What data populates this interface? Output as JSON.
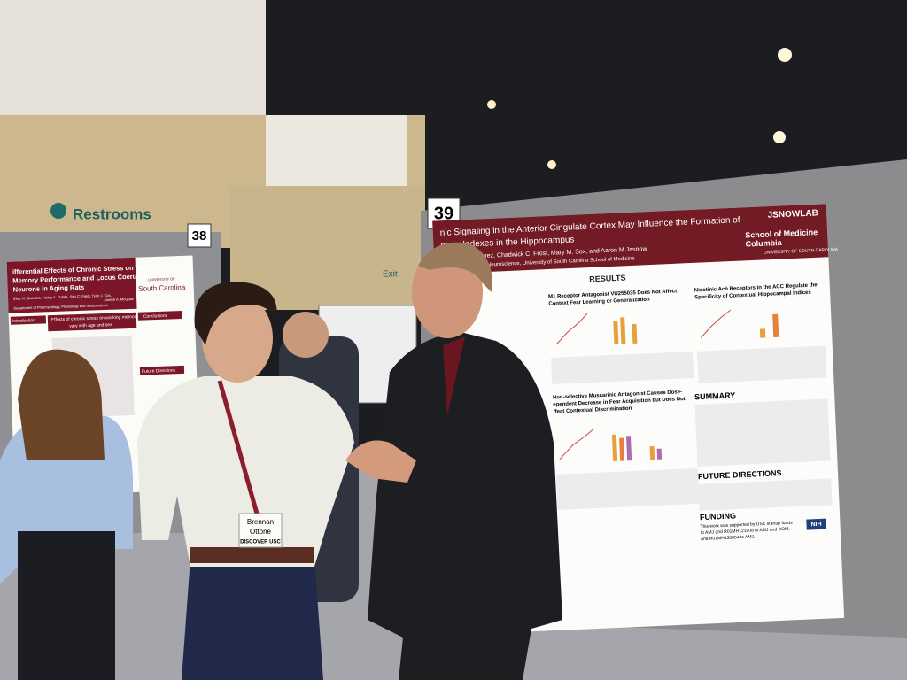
{
  "signs": {
    "restrooms": "Restrooms",
    "exit": "Exit",
    "board_38": "38",
    "board_39": "39"
  },
  "poster_39": {
    "title_line1": "nic Signaling in the Anterior Cingulate Cortex May Influence the Formation of",
    "title_line2": "mory Indexes in the Hippocampus",
    "authors": "rdo Aguilar-Alvarez, Chadwick C. Frost, Mary M. Sox, and Aaron M.Jasnow",
    "affiliation": "gy, Physiology and Neuroscience, University of South Carolina School of Medicine",
    "lab_logo": "JSNOWLAB",
    "school": "School of Medicine",
    "campus": "Columbia",
    "university": "UNIVERSITY OF SOUTH CAROLINA",
    "results": "RESULTS",
    "panel1_title": [
      "M1 Receptor Antagonist VU255035 Does Not Affect",
      "Context Fear Learning or Generalization"
    ],
    "panel2_title": [
      "Nicotinic Ach Receptors in the ACC Regulate the",
      "Specificity of Contextual Hippocampal Indices"
    ],
    "panel3_title": [
      "Non-selective Muscarinic Antagonist Causes Dose-",
      "ependent Decrease in Fear Acquisition but Does Not",
      "ffect Contextual Discrimination"
    ],
    "summary": "SUMMARY",
    "future": "FUTURE DIRECTIONS",
    "funding": "FUNDING",
    "funding_text": [
      "This work was supported by USC startup funds",
      "to AMJ and R01MH121908 to AMJ and DOM,",
      "and R01MH136854 to AMJ."
    ],
    "nih": "NIH"
  },
  "poster_38": {
    "title": [
      "ifferential Effects of Chronic Stress on Working",
      "Memory Performance and Locus Coeruleus",
      "Neurons in Aging Rats"
    ],
    "authors": [
      "Elise N. Quartaro, Hailey A. Dufala, Sitvi C. Patel, Tyler J. Cox,",
      "Joseph A. McQuail"
    ],
    "department": "Department of Pharmacology, Physiology and Neuroscience",
    "logo": [
      "UNIVERSITY OF",
      "South Carolina"
    ],
    "introduction": "Introduction",
    "results_heading": [
      "Effects of chronic stress on working memory",
      "vary with age and sex"
    ],
    "conclusions": "Conclusions",
    "future": "Future Directions"
  },
  "name_tag": {
    "first": "Brennan",
    "last": "Ottone",
    "org": "DISCOVER USC"
  }
}
